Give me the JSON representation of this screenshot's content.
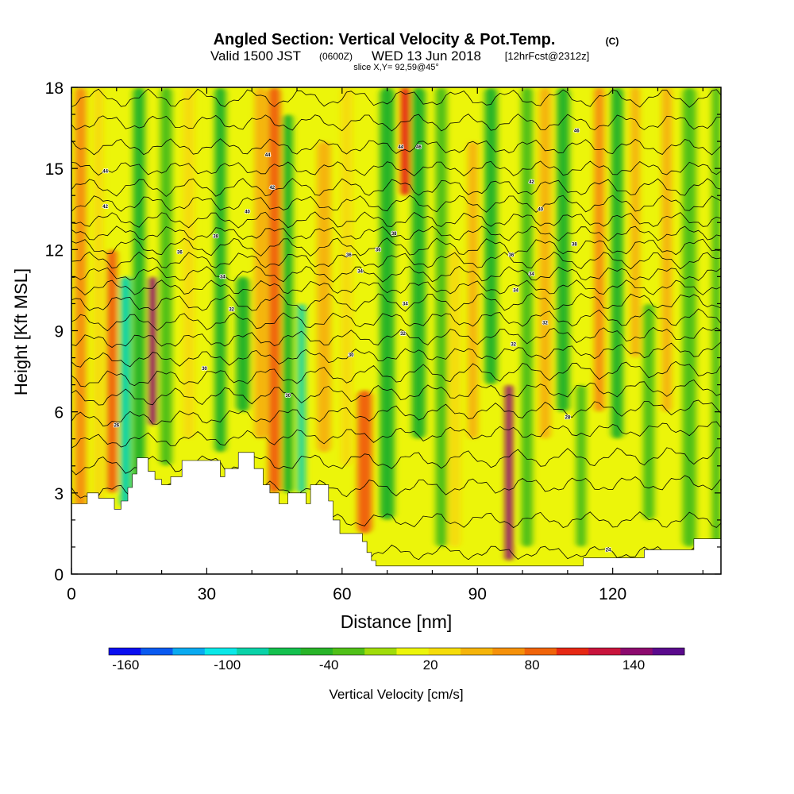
{
  "header": {
    "title": "Angled Section: Vertical Velocity & Pot.Temp.",
    "title_unit": "(C)",
    "valid_prefix": "Valid 1500 JST",
    "valid_utc": "(0600Z)",
    "valid_date": "WED 13 Jun 2018",
    "valid_fcst": "[12hrFcst@2312z]",
    "slice": "slice X,Y= 92,59@45°"
  },
  "chart_data": {
    "type": "heatmap",
    "title": "Angled Section: Vertical Velocity & Pot.Temp.",
    "xlabel": "Distance [nm]",
    "ylabel": "Height [Kft MSL]",
    "xlim": [
      0,
      144
    ],
    "ylim": [
      0,
      18
    ],
    "x_ticks": [
      "0",
      "30",
      "60",
      "90",
      "120"
    ],
    "x_tick_values": [
      0,
      30,
      60,
      90,
      120
    ],
    "y_ticks": [
      "0",
      "3",
      "6",
      "9",
      "12",
      "15",
      "18"
    ],
    "y_tick_values": [
      0,
      3,
      6,
      9,
      12,
      15,
      18
    ],
    "colorbar": {
      "label": "Vertical Velocity [cm/s]",
      "min": -170,
      "max": 170,
      "step": 20,
      "tick_labels": [
        "-160",
        "-100",
        "-40",
        "20",
        "80",
        "140"
      ],
      "tick_values": [
        -160,
        -100,
        -40,
        20,
        80,
        140
      ],
      "colors": [
        "#0a0ef0",
        "#0a5af0",
        "#0aaaf0",
        "#0ae8e8",
        "#0ad2a8",
        "#14c04e",
        "#28b428",
        "#50c018",
        "#a0dc0a",
        "#ecf50a",
        "#f5dc0a",
        "#f5b40a",
        "#f5910a",
        "#f0640a",
        "#e62814",
        "#c8143c",
        "#8c0a6e",
        "#5a0a8c"
      ]
    },
    "background_value": 20,
    "velocity_columns": [
      {
        "x": 2,
        "w": 2.5,
        "z0": 0,
        "z1": 18,
        "value": 70
      },
      {
        "x": 6,
        "w": 2.2,
        "z0": 0,
        "z1": 18,
        "value": 30
      },
      {
        "x": 9,
        "w": 2.2,
        "z0": 3,
        "z1": 12,
        "value": 90
      },
      {
        "x": 12,
        "w": 2.3,
        "z0": 2.5,
        "z1": 11,
        "value": -90
      },
      {
        "x": 15,
        "w": 2.6,
        "z0": 2.5,
        "z1": 18,
        "value": -50
      },
      {
        "x": 18,
        "w": 1.6,
        "z0": 5.5,
        "z1": 11,
        "value": 160
      },
      {
        "x": 21,
        "w": 2.6,
        "z0": 4,
        "z1": 18,
        "value": -30
      },
      {
        "x": 26,
        "w": 2.5,
        "z0": 5,
        "z1": 18,
        "value": 40
      },
      {
        "x": 33,
        "w": 2.5,
        "z0": 4.5,
        "z1": 18,
        "value": -40
      },
      {
        "x": 38,
        "w": 3,
        "z0": 6,
        "z1": 11,
        "value": -50
      },
      {
        "x": 42,
        "w": 2.8,
        "z0": 5,
        "z1": 18,
        "value": 60
      },
      {
        "x": 45,
        "w": 2.6,
        "z0": 3,
        "z1": 18,
        "value": 100
      },
      {
        "x": 48,
        "w": 2.2,
        "z0": 3,
        "z1": 17,
        "value": -50
      },
      {
        "x": 51,
        "w": 1.6,
        "z0": 3,
        "z1": 10,
        "value": -80
      },
      {
        "x": 56,
        "w": 3,
        "z0": 4.5,
        "z1": 16,
        "value": 50
      },
      {
        "x": 65,
        "w": 3.2,
        "z0": 1.5,
        "z1": 6.8,
        "value": 100
      },
      {
        "x": 61,
        "w": 2.5,
        "z0": 4,
        "z1": 18,
        "value": 40
      },
      {
        "x": 70,
        "w": 3.2,
        "z0": 2,
        "z1": 18,
        "value": -40
      },
      {
        "x": 74,
        "w": 2,
        "z0": 14,
        "z1": 18,
        "value": 120
      },
      {
        "x": 77,
        "w": 3,
        "z0": 5,
        "z1": 18,
        "value": -50
      },
      {
        "x": 82,
        "w": 2.5,
        "z0": 1,
        "z1": 18,
        "value": -20
      },
      {
        "x": 85,
        "w": 2.5,
        "z0": 1,
        "z1": 12,
        "value": 40
      },
      {
        "x": 89,
        "w": 2.2,
        "z0": 5,
        "z1": 16,
        "value": 50
      },
      {
        "x": 93,
        "w": 2.8,
        "z0": 7,
        "z1": 18,
        "value": -50
      },
      {
        "x": 97,
        "w": 1.6,
        "z0": 0.5,
        "z1": 7,
        "value": 150
      },
      {
        "x": 101,
        "w": 2.5,
        "z0": 1,
        "z1": 18,
        "value": -30
      },
      {
        "x": 105,
        "w": 2.5,
        "z0": 5,
        "z1": 18,
        "value": 60
      },
      {
        "x": 109,
        "w": 2.8,
        "z0": 6,
        "z1": 18,
        "value": -40
      },
      {
        "x": 113,
        "w": 2.2,
        "z0": 1,
        "z1": 7,
        "value": -30
      },
      {
        "x": 117,
        "w": 2.2,
        "z0": 6,
        "z1": 18,
        "value": 70
      },
      {
        "x": 121,
        "w": 2.6,
        "z0": 5,
        "z1": 18,
        "value": -40
      },
      {
        "x": 125,
        "w": 2,
        "z0": 8,
        "z1": 18,
        "value": 60
      },
      {
        "x": 128,
        "w": 2.5,
        "z0": 2,
        "z1": 10,
        "value": -20
      },
      {
        "x": 132,
        "w": 2.2,
        "z0": 6,
        "z1": 18,
        "value": 50
      },
      {
        "x": 137,
        "w": 3,
        "z0": 1,
        "z1": 18,
        "value": -30
      },
      {
        "x": 143,
        "w": 2,
        "z0": 1,
        "z1": 18,
        "value": -20
      }
    ],
    "terrain": [
      [
        0,
        2.6
      ],
      [
        3.5,
        2.6
      ],
      [
        3.5,
        3.0
      ],
      [
        6,
        3.0
      ],
      [
        6,
        2.8
      ],
      [
        9.5,
        2.8
      ],
      [
        9.5,
        2.4
      ],
      [
        11,
        2.4
      ],
      [
        11,
        2.7
      ],
      [
        12.5,
        2.7
      ],
      [
        12.5,
        3.2
      ],
      [
        13.5,
        3.2
      ],
      [
        13.5,
        3.7
      ],
      [
        14.5,
        3.7
      ],
      [
        14.5,
        4.3
      ],
      [
        17,
        4.3
      ],
      [
        17,
        3.8
      ],
      [
        18.5,
        3.8
      ],
      [
        18.5,
        3.5
      ],
      [
        20,
        3.5
      ],
      [
        20,
        3.3
      ],
      [
        22,
        3.3
      ],
      [
        22,
        3.6
      ],
      [
        24.5,
        3.6
      ],
      [
        24.5,
        4.2
      ],
      [
        33,
        4.2
      ],
      [
        33,
        3.6
      ],
      [
        34,
        3.6
      ],
      [
        34,
        3.9
      ],
      [
        37,
        3.9
      ],
      [
        37,
        4.5
      ],
      [
        40.5,
        4.5
      ],
      [
        40.5,
        3.9
      ],
      [
        42.5,
        3.9
      ],
      [
        42.5,
        3.3
      ],
      [
        44,
        3.3
      ],
      [
        44,
        3.0
      ],
      [
        46,
        3.0
      ],
      [
        46,
        2.6
      ],
      [
        48,
        2.6
      ],
      [
        48,
        3.0
      ],
      [
        52,
        3.0
      ],
      [
        52,
        2.6
      ],
      [
        53,
        2.6
      ],
      [
        53,
        3.3
      ],
      [
        57,
        3.3
      ],
      [
        57,
        2.7
      ],
      [
        58,
        2.7
      ],
      [
        58,
        2.0
      ],
      [
        59.5,
        2.0
      ],
      [
        59.5,
        1.5
      ],
      [
        64.5,
        1.5
      ],
      [
        64.5,
        1.2
      ],
      [
        65.5,
        1.2
      ],
      [
        65.5,
        0.8
      ],
      [
        66.5,
        0.8
      ],
      [
        66.5,
        0.5
      ],
      [
        67.5,
        0.5
      ],
      [
        67.5,
        0.3
      ],
      [
        113.5,
        0.3
      ],
      [
        113.5,
        0.6
      ],
      [
        127,
        0.6
      ],
      [
        127,
        0.9
      ],
      [
        138,
        0.9
      ],
      [
        138,
        1.3
      ],
      [
        144,
        1.3
      ]
    ],
    "isentropes": [
      {
        "base": 0.8,
        "top": 0.8
      },
      {
        "base": 2.0,
        "top": 2.0
      },
      {
        "base": 3.0,
        "top": 3.4
      },
      {
        "base": 4.0,
        "top": 4.4
      },
      {
        "base": 4.9,
        "top": 5.4
      },
      {
        "base": 5.7,
        "top": 6.2
      },
      {
        "base": 6.5,
        "top": 6.9
      },
      {
        "base": 7.2,
        "top": 7.6
      },
      {
        "base": 7.9,
        "top": 8.3
      },
      {
        "base": 8.6,
        "top": 8.9
      },
      {
        "base": 9.3,
        "top": 9.5
      },
      {
        "base": 10.0,
        "top": 10.1
      },
      {
        "base": 10.6,
        "top": 10.6
      },
      {
        "base": 11.1,
        "top": 11.1
      },
      {
        "base": 11.6,
        "top": 11.6
      },
      {
        "base": 12.1,
        "top": 12.1
      },
      {
        "base": 12.6,
        "top": 12.6
      },
      {
        "base": 13.1,
        "top": 13.1
      },
      {
        "base": 13.7,
        "top": 13.7
      },
      {
        "base": 14.3,
        "top": 14.3
      },
      {
        "base": 15.0,
        "top": 15.0
      },
      {
        "base": 15.8,
        "top": 15.8
      },
      {
        "base": 16.7,
        "top": 16.7
      },
      {
        "base": 17.6,
        "top": 17.6
      }
    ],
    "contour_labels": [
      {
        "text": "24",
        "x": 119,
        "z": 0.9
      },
      {
        "text": "26",
        "x": 10,
        "z": 5.5
      },
      {
        "text": "28",
        "x": 110,
        "z": 5.8
      },
      {
        "text": "30",
        "x": 48,
        "z": 6.6
      },
      {
        "text": "30",
        "x": 29.5,
        "z": 7.6
      },
      {
        "text": "30",
        "x": 62,
        "z": 8.1
      },
      {
        "text": "32",
        "x": 98,
        "z": 8.5
      },
      {
        "text": "32",
        "x": 73.5,
        "z": 8.9
      },
      {
        "text": "32",
        "x": 105,
        "z": 9.3
      },
      {
        "text": "32",
        "x": 35.5,
        "z": 9.8
      },
      {
        "text": "34",
        "x": 74,
        "z": 10.0
      },
      {
        "text": "34",
        "x": 98.5,
        "z": 10.5
      },
      {
        "text": "34",
        "x": 33.5,
        "z": 11.0
      },
      {
        "text": "34",
        "x": 64,
        "z": 11.2
      },
      {
        "text": "34",
        "x": 102,
        "z": 11.1
      },
      {
        "text": "36",
        "x": 61.5,
        "z": 11.8
      },
      {
        "text": "36",
        "x": 68,
        "z": 12.0
      },
      {
        "text": "36",
        "x": 24,
        "z": 11.9
      },
      {
        "text": "36",
        "x": 97.5,
        "z": 11.8
      },
      {
        "text": "38",
        "x": 32,
        "z": 12.5
      },
      {
        "text": "38",
        "x": 71.5,
        "z": 12.6
      },
      {
        "text": "38",
        "x": 111.5,
        "z": 12.2
      },
      {
        "text": "40",
        "x": 39,
        "z": 13.4
      },
      {
        "text": "40",
        "x": 104,
        "z": 13.5
      },
      {
        "text": "42",
        "x": 7.5,
        "z": 13.6
      },
      {
        "text": "42",
        "x": 44.5,
        "z": 14.3
      },
      {
        "text": "42",
        "x": 102,
        "z": 14.5
      },
      {
        "text": "44",
        "x": 7.5,
        "z": 14.9
      },
      {
        "text": "44",
        "x": 43.5,
        "z": 15.5
      },
      {
        "text": "44",
        "x": 73,
        "z": 15.8
      },
      {
        "text": "46",
        "x": 77,
        "z": 15.8
      },
      {
        "text": "46",
        "x": 112,
        "z": 16.4
      }
    ]
  }
}
